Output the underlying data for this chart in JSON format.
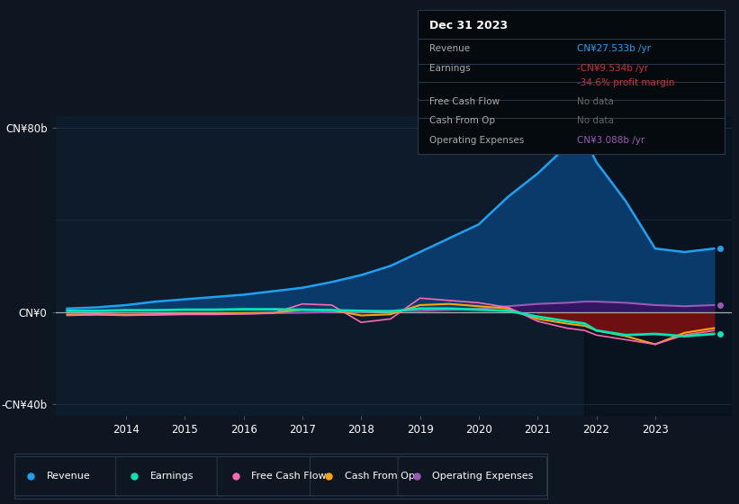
{
  "bg_color": "#0e1621",
  "plot_bg_color": "#0d1b2a",
  "grid_color": "#1e2d3d",
  "zero_line_color": "#aaaaaa",
  "years": [
    2013.0,
    2013.5,
    2014.0,
    2014.5,
    2015.0,
    2015.5,
    2016.0,
    2016.5,
    2017.0,
    2017.5,
    2018.0,
    2018.5,
    2019.0,
    2019.5,
    2020.0,
    2020.5,
    2021.0,
    2021.5,
    2021.8,
    2022.0,
    2022.5,
    2023.0,
    2023.5,
    2024.0
  ],
  "revenue": [
    1.5,
    2.0,
    3.0,
    4.5,
    5.5,
    6.5,
    7.5,
    9.0,
    10.5,
    13.0,
    16.0,
    20.0,
    26.0,
    32.0,
    38.0,
    50.0,
    60.0,
    72.0,
    75.0,
    65.0,
    48.0,
    27.5,
    26.0,
    27.5
  ],
  "earnings": [
    0.5,
    0.5,
    0.8,
    0.8,
    1.0,
    1.0,
    1.2,
    1.2,
    1.0,
    0.8,
    0.5,
    0.3,
    1.5,
    1.5,
    1.0,
    0.5,
    -2.0,
    -4.0,
    -5.0,
    -8.0,
    -10.0,
    -9.5,
    -10.5,
    -9.5
  ],
  "free_cf": [
    -1.5,
    -1.2,
    -1.5,
    -1.2,
    -1.0,
    -1.0,
    -0.8,
    -0.5,
    3.5,
    3.0,
    -4.5,
    -3.0,
    6.0,
    5.0,
    4.0,
    2.0,
    -4.0,
    -7.0,
    -8.0,
    -10.0,
    -12.0,
    -14.0,
    -10.0,
    -8.0
  ],
  "cash_op": [
    -1.2,
    -1.0,
    -1.2,
    -1.0,
    -0.8,
    -0.8,
    -0.5,
    -0.3,
    1.0,
    0.8,
    -1.5,
    -1.0,
    3.0,
    3.5,
    2.5,
    1.5,
    -3.0,
    -5.0,
    -6.0,
    -8.0,
    -10.5,
    -14.0,
    -9.0,
    -7.0
  ],
  "opex": [
    -1.0,
    -1.0,
    -1.2,
    -1.2,
    -1.0,
    -1.0,
    -0.8,
    -0.5,
    -0.3,
    0.0,
    0.0,
    0.5,
    0.5,
    1.0,
    1.5,
    2.5,
    3.5,
    4.0,
    4.5,
    4.5,
    4.0,
    3.0,
    2.5,
    3.0
  ],
  "revenue_color": "#1da1f2",
  "earnings_color": "#00e5b5",
  "free_cf_color": "#ff69b4",
  "cash_op_color": "#ffa500",
  "opex_color": "#9b59b6",
  "revenue_fill": "#0a3a6a",
  "earnings_fill_pos": "#0a4a3a",
  "earnings_fill_neg": "#7a1010",
  "opex_fill": "#3a1060",
  "ylim": [
    -45,
    85
  ],
  "legend_labels": [
    "Revenue",
    "Earnings",
    "Free Cash Flow",
    "Cash From Op",
    "Operating Expenses"
  ],
  "legend_colors": [
    "#1da1f2",
    "#00e5b5",
    "#ff69b4",
    "#ffa500",
    "#9b59b6"
  ],
  "tooltip": {
    "title": "Dec 31 2023",
    "rows": [
      {
        "label": "Revenue",
        "value": "CN¥27.533b /yr",
        "label_color": "#aaaaaa",
        "value_color": "#1da1f2"
      },
      {
        "label": "Earnings",
        "value": "-CN¥9.534b /yr",
        "label_color": "#aaaaaa",
        "value_color": "#cc3333"
      },
      {
        "label": "",
        "value": "-34.6% profit margin",
        "label_color": "#aaaaaa",
        "value_color": "#cc3333"
      },
      {
        "label": "Free Cash Flow",
        "value": "No data",
        "label_color": "#aaaaaa",
        "value_color": "#666666"
      },
      {
        "label": "Cash From Op",
        "value": "No data",
        "label_color": "#aaaaaa",
        "value_color": "#666666"
      },
      {
        "label": "Operating Expenses",
        "value": "CN¥3.088b /yr",
        "label_color": "#aaaaaa",
        "value_color": "#9b59b6"
      }
    ]
  }
}
